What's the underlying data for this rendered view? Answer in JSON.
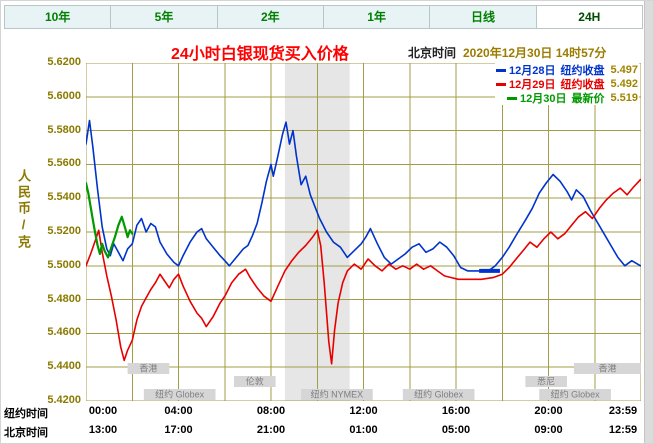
{
  "tabs": [
    {
      "label": "10年",
      "active": false
    },
    {
      "label": "5年",
      "active": false
    },
    {
      "label": "2年",
      "active": false
    },
    {
      "label": "1年",
      "active": false
    },
    {
      "label": "日线",
      "active": false
    },
    {
      "label": "24H",
      "active": true
    }
  ],
  "header": {
    "title": "24小时白银现货买入价格",
    "time_prefix": "北京时间",
    "timestamp": "2020年12月30日 14时57分"
  },
  "legend": [
    {
      "date": "12月28日",
      "label": "纽约收盘",
      "value": "5.497",
      "color": "#0033cc"
    },
    {
      "date": "12月29日",
      "label": "纽约收盘",
      "value": "5.492",
      "color": "#e80000"
    },
    {
      "date": "12月30日",
      "label": "最新价",
      "value": "5.519",
      "color": "#009900"
    }
  ],
  "colors": {
    "grid": "#a39d4a",
    "band": "#e6e6e6",
    "axis_text": "#8a7a00",
    "value_text": "#a18500",
    "title": "#ff0000",
    "session_box": "#d6d6d6",
    "session_text": "#7e7e7e",
    "tab_bg": "#e7f3f4",
    "tab_text": "#008000"
  },
  "chart_data": {
    "type": "line",
    "title": "24小时白银现货买入价格",
    "ylabel": "人民币/克",
    "ylim": [
      5.42,
      5.62
    ],
    "xlim_hours": [
      0,
      24
    ],
    "grid": true,
    "legend_position": "top-right",
    "y_tick_labels": [
      "5.6200",
      "5.6000",
      "5.5800",
      "5.5600",
      "5.5400",
      "5.5200",
      "5.5000",
      "5.4800",
      "5.4600",
      "5.4400",
      "5.4200"
    ],
    "x_row_labels": [
      "纽约时间",
      "北京时间"
    ],
    "x_ticks": [
      {
        "h": 0,
        "ny": "00:00",
        "bj": "13:00"
      },
      {
        "h": 4,
        "ny": "04:00",
        "bj": "17:00"
      },
      {
        "h": 8,
        "ny": "08:00",
        "bj": "21:00"
      },
      {
        "h": 12,
        "ny": "12:00",
        "bj": "01:00"
      },
      {
        "h": 16,
        "ny": "16:00",
        "bj": "05:00"
      },
      {
        "h": 20,
        "ny": "20:00",
        "bj": "09:00"
      },
      {
        "h": 23.983,
        "ny": "23:59",
        "bj": "12:59"
      }
    ],
    "shaded_region_hours": [
      8.6,
      11.4
    ],
    "close_markers": [
      {
        "color": "#0033cc",
        "value": 5.497,
        "from": 17.0,
        "to": 17.9
      }
    ],
    "sessions": [
      {
        "row": 0,
        "label": "香港",
        "start": 1.8,
        "end": 3.6
      },
      {
        "row": 0,
        "label": "香港",
        "start": 21.1,
        "end": 24
      },
      {
        "row": 1,
        "label": "伦敦",
        "start": 6.4,
        "end": 8.2
      },
      {
        "row": 1,
        "label": "悉尼",
        "start": 19,
        "end": 20.8
      },
      {
        "row": 2,
        "label": "纽约 Globex",
        "start": 2.5,
        "end": 5.6
      },
      {
        "row": 2,
        "label": "纽约 NYMEX",
        "start": 9.3,
        "end": 12.4
      },
      {
        "row": 2,
        "label": "纽约 Globex",
        "start": 13.7,
        "end": 16.8
      },
      {
        "row": 2,
        "label": "纽约 Globex",
        "start": 19.6,
        "end": 22.7
      }
    ],
    "series": [
      {
        "name": "12月28日 纽约收盘",
        "close": "5.497",
        "color": "#0033cc",
        "points": [
          [
            0,
            5.572
          ],
          [
            0.15,
            5.586
          ],
          [
            0.3,
            5.57
          ],
          [
            0.5,
            5.545
          ],
          [
            0.7,
            5.523
          ],
          [
            0.9,
            5.51
          ],
          [
            1.05,
            5.506
          ],
          [
            1.2,
            5.513
          ],
          [
            1.4,
            5.508
          ],
          [
            1.6,
            5.503
          ],
          [
            1.8,
            5.51
          ],
          [
            2,
            5.513
          ],
          [
            2.2,
            5.524
          ],
          [
            2.4,
            5.528
          ],
          [
            2.6,
            5.52
          ],
          [
            2.8,
            5.525
          ],
          [
            3,
            5.523
          ],
          [
            3.2,
            5.514
          ],
          [
            3.5,
            5.507
          ],
          [
            3.8,
            5.502
          ],
          [
            4,
            5.5
          ],
          [
            4.2,
            5.506
          ],
          [
            4.5,
            5.514
          ],
          [
            4.8,
            5.52
          ],
          [
            5,
            5.522
          ],
          [
            5.2,
            5.516
          ],
          [
            5.5,
            5.511
          ],
          [
            5.8,
            5.506
          ],
          [
            6,
            5.503
          ],
          [
            6.2,
            5.5
          ],
          [
            6.5,
            5.505
          ],
          [
            6.8,
            5.51
          ],
          [
            7,
            5.512
          ],
          [
            7.2,
            5.518
          ],
          [
            7.4,
            5.525
          ],
          [
            7.6,
            5.537
          ],
          [
            7.8,
            5.55
          ],
          [
            8,
            5.56
          ],
          [
            8.1,
            5.553
          ],
          [
            8.3,
            5.565
          ],
          [
            8.5,
            5.578
          ],
          [
            8.65,
            5.585
          ],
          [
            8.8,
            5.572
          ],
          [
            8.95,
            5.58
          ],
          [
            9.1,
            5.565
          ],
          [
            9.3,
            5.548
          ],
          [
            9.5,
            5.553
          ],
          [
            9.7,
            5.542
          ],
          [
            9.9,
            5.535
          ],
          [
            10.1,
            5.528
          ],
          [
            10.4,
            5.52
          ],
          [
            10.7,
            5.514
          ],
          [
            11,
            5.511
          ],
          [
            11.3,
            5.505
          ],
          [
            11.6,
            5.509
          ],
          [
            11.9,
            5.513
          ],
          [
            12.1,
            5.517
          ],
          [
            12.3,
            5.522
          ],
          [
            12.6,
            5.513
          ],
          [
            12.9,
            5.505
          ],
          [
            13.2,
            5.501
          ],
          [
            13.5,
            5.504
          ],
          [
            13.8,
            5.507
          ],
          [
            14.1,
            5.511
          ],
          [
            14.4,
            5.513
          ],
          [
            14.7,
            5.508
          ],
          [
            15,
            5.51
          ],
          [
            15.3,
            5.514
          ],
          [
            15.6,
            5.511
          ],
          [
            15.9,
            5.506
          ],
          [
            16.2,
            5.499
          ],
          [
            16.5,
            5.497
          ],
          [
            17,
            5.497
          ],
          [
            17.4,
            5.497
          ],
          [
            17.7,
            5.5
          ],
          [
            18,
            5.505
          ],
          [
            18.3,
            5.511
          ],
          [
            18.6,
            5.518
          ],
          [
            19,
            5.527
          ],
          [
            19.3,
            5.534
          ],
          [
            19.6,
            5.543
          ],
          [
            19.9,
            5.549
          ],
          [
            20.2,
            5.554
          ],
          [
            20.5,
            5.55
          ],
          [
            20.8,
            5.544
          ],
          [
            21,
            5.539
          ],
          [
            21.2,
            5.545
          ],
          [
            21.5,
            5.541
          ],
          [
            21.8,
            5.533
          ],
          [
            22.1,
            5.526
          ],
          [
            22.4,
            5.519
          ],
          [
            22.7,
            5.512
          ],
          [
            23,
            5.505
          ],
          [
            23.3,
            5.5
          ],
          [
            23.6,
            5.503
          ],
          [
            23.98,
            5.5
          ]
        ]
      },
      {
        "name": "12月29日 纽约收盘",
        "close": "5.492",
        "color": "#e80000",
        "points": [
          [
            0,
            5.5
          ],
          [
            0.2,
            5.507
          ],
          [
            0.4,
            5.515
          ],
          [
            0.55,
            5.521
          ],
          [
            0.7,
            5.508
          ],
          [
            0.9,
            5.494
          ],
          [
            1.1,
            5.482
          ],
          [
            1.3,
            5.468
          ],
          [
            1.5,
            5.452
          ],
          [
            1.65,
            5.444
          ],
          [
            1.8,
            5.45
          ],
          [
            2,
            5.456
          ],
          [
            2.2,
            5.468
          ],
          [
            2.4,
            5.476
          ],
          [
            2.6,
            5.481
          ],
          [
            2.8,
            5.486
          ],
          [
            3,
            5.49
          ],
          [
            3.2,
            5.495
          ],
          [
            3.4,
            5.491
          ],
          [
            3.6,
            5.487
          ],
          [
            3.8,
            5.492
          ],
          [
            4,
            5.495
          ],
          [
            4.2,
            5.488
          ],
          [
            4.5,
            5.479
          ],
          [
            4.8,
            5.472
          ],
          [
            5,
            5.469
          ],
          [
            5.2,
            5.464
          ],
          [
            5.5,
            5.47
          ],
          [
            5.8,
            5.478
          ],
          [
            6,
            5.482
          ],
          [
            6.3,
            5.49
          ],
          [
            6.6,
            5.495
          ],
          [
            6.9,
            5.498
          ],
          [
            7.1,
            5.493
          ],
          [
            7.4,
            5.487
          ],
          [
            7.7,
            5.482
          ],
          [
            8,
            5.479
          ],
          [
            8.3,
            5.488
          ],
          [
            8.6,
            5.497
          ],
          [
            8.9,
            5.503
          ],
          [
            9.2,
            5.508
          ],
          [
            9.5,
            5.512
          ],
          [
            9.8,
            5.517
          ],
          [
            10,
            5.521
          ],
          [
            10.15,
            5.512
          ],
          [
            10.3,
            5.49
          ],
          [
            10.5,
            5.455
          ],
          [
            10.62,
            5.442
          ],
          [
            10.75,
            5.462
          ],
          [
            10.9,
            5.478
          ],
          [
            11.1,
            5.49
          ],
          [
            11.3,
            5.497
          ],
          [
            11.6,
            5.501
          ],
          [
            11.9,
            5.498
          ],
          [
            12.2,
            5.504
          ],
          [
            12.5,
            5.5
          ],
          [
            12.8,
            5.497
          ],
          [
            13.1,
            5.501
          ],
          [
            13.4,
            5.498
          ],
          [
            13.7,
            5.5
          ],
          [
            14,
            5.498
          ],
          [
            14.3,
            5.501
          ],
          [
            14.6,
            5.498
          ],
          [
            14.9,
            5.5
          ],
          [
            15.2,
            5.497
          ],
          [
            15.5,
            5.494
          ],
          [
            15.8,
            5.493
          ],
          [
            16.1,
            5.492
          ],
          [
            16.6,
            5.492
          ],
          [
            17.1,
            5.492
          ],
          [
            17.6,
            5.493
          ],
          [
            18,
            5.495
          ],
          [
            18.3,
            5.499
          ],
          [
            18.6,
            5.504
          ],
          [
            18.9,
            5.509
          ],
          [
            19.2,
            5.514
          ],
          [
            19.5,
            5.511
          ],
          [
            19.8,
            5.516
          ],
          [
            20.1,
            5.52
          ],
          [
            20.4,
            5.516
          ],
          [
            20.7,
            5.519
          ],
          [
            21,
            5.524
          ],
          [
            21.3,
            5.529
          ],
          [
            21.6,
            5.532
          ],
          [
            21.9,
            5.528
          ],
          [
            22.2,
            5.534
          ],
          [
            22.5,
            5.539
          ],
          [
            22.8,
            5.543
          ],
          [
            23.1,
            5.546
          ],
          [
            23.4,
            5.542
          ],
          [
            23.7,
            5.547
          ],
          [
            23.98,
            5.551
          ]
        ]
      },
      {
        "name": "12月30日 最新价",
        "close": "5.519",
        "color": "#009900",
        "points": [
          [
            0,
            5.549
          ],
          [
            0.1,
            5.543
          ],
          [
            0.2,
            5.535
          ],
          [
            0.3,
            5.527
          ],
          [
            0.4,
            5.519
          ],
          [
            0.5,
            5.512
          ],
          [
            0.6,
            5.507
          ],
          [
            0.7,
            5.513
          ],
          [
            0.8,
            5.509
          ],
          [
            0.95,
            5.505
          ],
          [
            1.1,
            5.511
          ],
          [
            1.25,
            5.517
          ],
          [
            1.4,
            5.524
          ],
          [
            1.55,
            5.529
          ],
          [
            1.7,
            5.522
          ],
          [
            1.8,
            5.517
          ],
          [
            1.9,
            5.521
          ],
          [
            2,
            5.519
          ]
        ]
      }
    ]
  }
}
